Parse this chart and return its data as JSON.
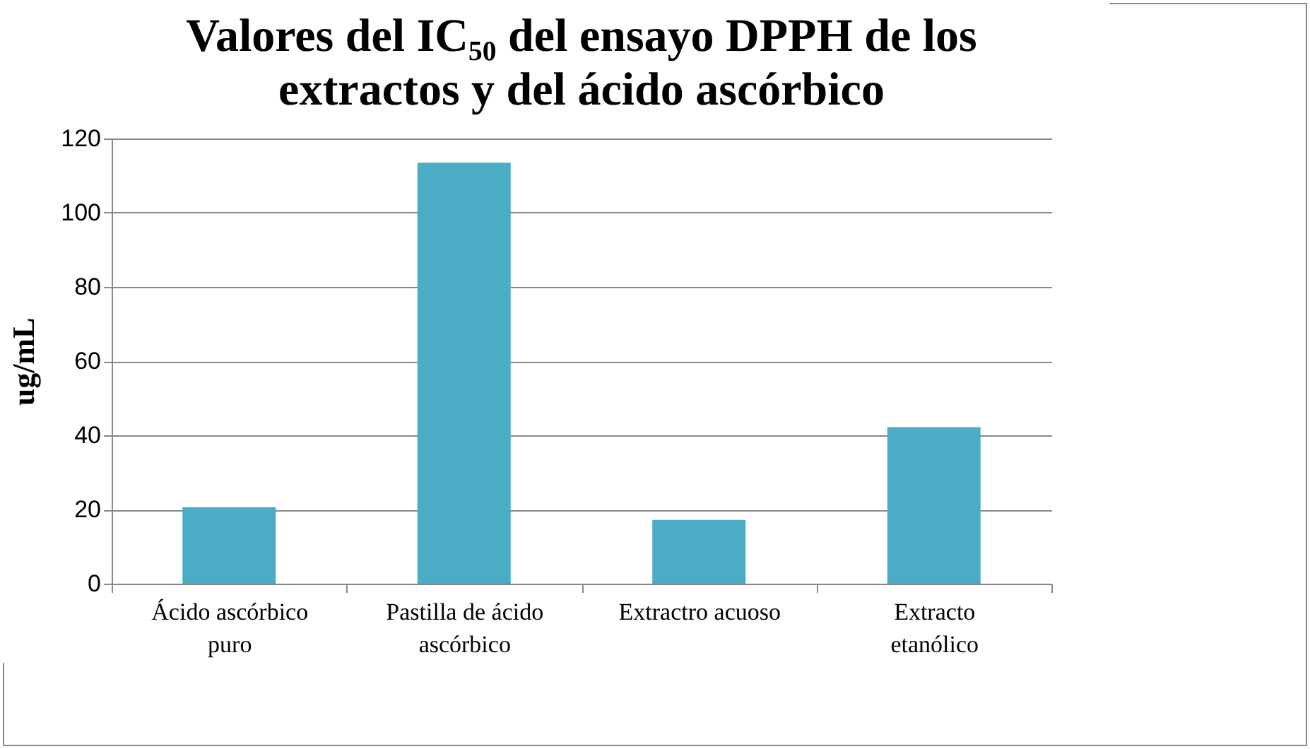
{
  "chart_data": {
    "type": "bar",
    "title": "Valores del IC₅₀ del ensayo DPPH de los extractos y del ácido ascórbico",
    "ylabel": "ug/mL",
    "categories": [
      "Ácido ascórbico puro",
      "Pastilla de ácido ascórbico",
      "Extractro acuoso",
      "Extracto etanólico"
    ],
    "values": [
      20.6,
      113.5,
      17.2,
      42.2
    ],
    "color": "#4bacc6",
    "ylim": [
      0,
      120
    ],
    "yticks": [
      0,
      20,
      40,
      60,
      80,
      100,
      120
    ],
    "grid": "y"
  }
}
